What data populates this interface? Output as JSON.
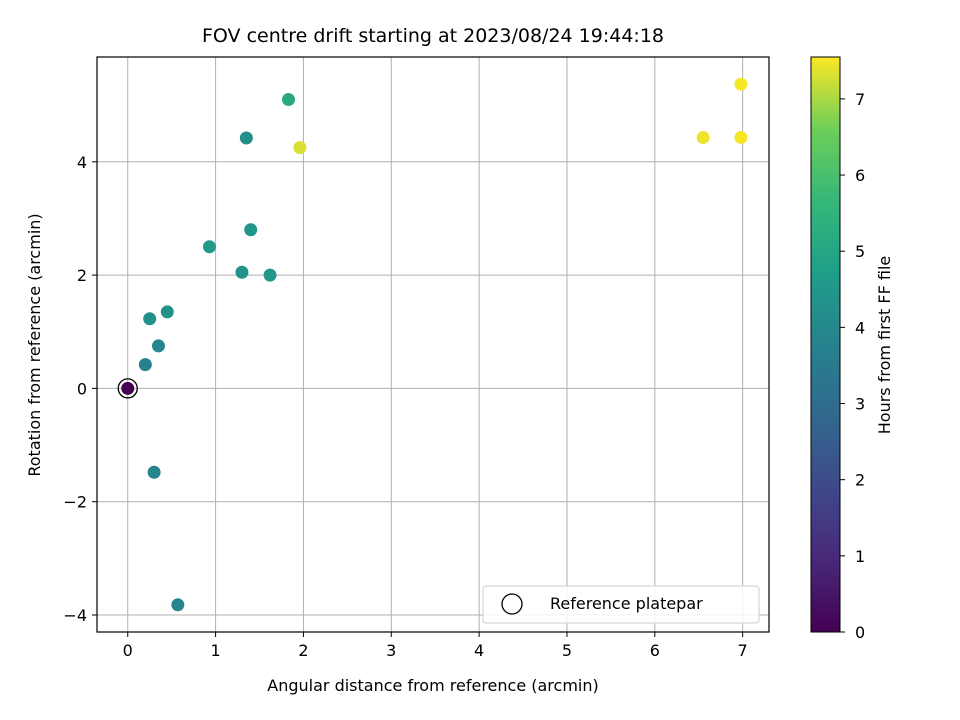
{
  "chart_data": {
    "type": "scatter",
    "title": "FOV centre drift starting at 2023/08/24 19:44:18",
    "xlabel": "Angular distance from reference (arcmin)",
    "ylabel": "Rotation from reference (arcmin)",
    "xlim": [
      -0.35,
      7.3
    ],
    "ylim": [
      -4.3,
      5.85
    ],
    "xticks": [
      0,
      1,
      2,
      3,
      4,
      5,
      6,
      7
    ],
    "yticks": [
      -4,
      -2,
      0,
      2,
      4
    ],
    "grid": true,
    "colormap": "viridis",
    "colorbar": {
      "label": "Hours from first FF file",
      "range": [
        0,
        7.55
      ],
      "ticks": [
        0,
        1,
        2,
        3,
        4,
        5,
        6,
        7
      ]
    },
    "legend": {
      "position": "bottom-right",
      "entries": [
        "Reference platepar"
      ]
    },
    "reference_point": {
      "x": 0,
      "y": 0,
      "hours": 0
    },
    "points": [
      {
        "x": 0.0,
        "y": 0.0,
        "hours": 0.0
      },
      {
        "x": 0.2,
        "y": 0.42,
        "hours": 3.7
      },
      {
        "x": 0.25,
        "y": 1.23,
        "hours": 4.25
      },
      {
        "x": 0.35,
        "y": 0.75,
        "hours": 3.9
      },
      {
        "x": 0.45,
        "y": 1.35,
        "hours": 4.3
      },
      {
        "x": 0.3,
        "y": -1.48,
        "hours": 3.85
      },
      {
        "x": 0.57,
        "y": -3.82,
        "hours": 3.95
      },
      {
        "x": 0.93,
        "y": 2.5,
        "hours": 4.55
      },
      {
        "x": 1.3,
        "y": 2.05,
        "hours": 4.35
      },
      {
        "x": 1.35,
        "y": 4.42,
        "hours": 4.2
      },
      {
        "x": 1.4,
        "y": 2.8,
        "hours": 4.45
      },
      {
        "x": 1.62,
        "y": 2.0,
        "hours": 4.5
      },
      {
        "x": 1.83,
        "y": 5.1,
        "hours": 5.15
      },
      {
        "x": 1.96,
        "y": 4.25,
        "hours": 7.3
      },
      {
        "x": 6.55,
        "y": 4.43,
        "hours": 7.45
      },
      {
        "x": 6.98,
        "y": 5.37,
        "hours": 7.5
      },
      {
        "x": 6.98,
        "y": 4.43,
        "hours": 7.5
      }
    ]
  }
}
